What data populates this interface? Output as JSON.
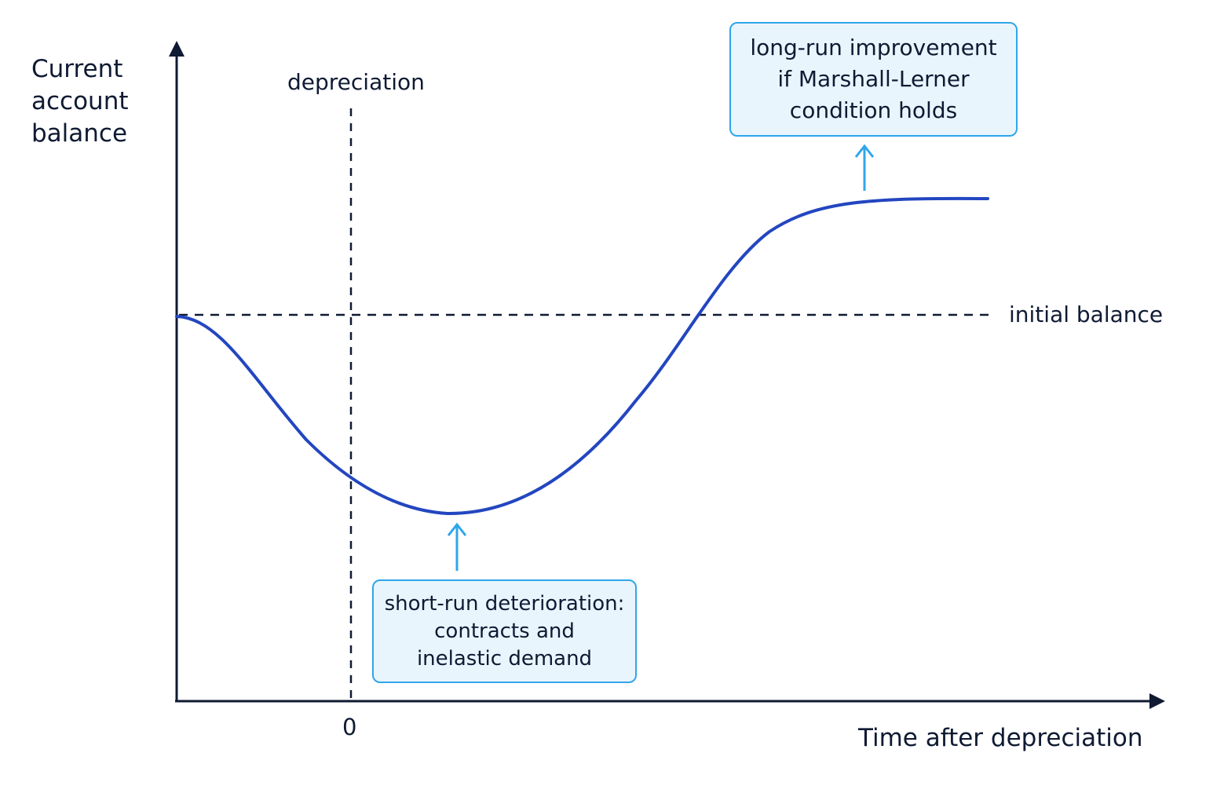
{
  "axes": {
    "y_label_lines": [
      "Current",
      "account",
      "balance"
    ],
    "x_label": "Time after depreciation",
    "origin_tick": "0"
  },
  "markers": {
    "depreciation_label": "depreciation",
    "initial_balance_label": "initial balance"
  },
  "annotations": {
    "long_run_lines": [
      "long-run improvement",
      "if Marshall-Lerner",
      "condition holds"
    ],
    "short_run_lines": [
      "short-run deterioration:",
      "contracts and",
      "inelastic demand"
    ]
  },
  "colors": {
    "axis": "#0f1a33",
    "curve": "#2346c0",
    "callout_border": "#2fa6ea",
    "callout_fill": "#e9f5fd",
    "arrow": "#2fa6ea"
  }
}
